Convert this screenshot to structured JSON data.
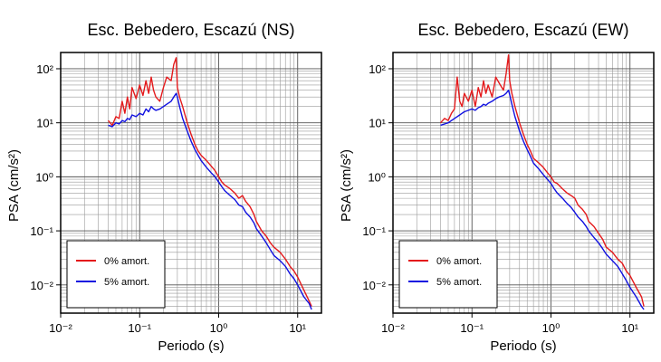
{
  "chart_data": [
    {
      "type": "line",
      "title": "Esc. Bebedero, Escazú (NS)",
      "xlabel": "Periodo (s)",
      "ylabel": "PSA (cm/s²)",
      "xscale": "log",
      "yscale": "log",
      "xlim": [
        0.01,
        20
      ],
      "ylim": [
        0.003,
        200
      ],
      "x_ticks": [
        0.01,
        0.1,
        1,
        10
      ],
      "x_tick_labels": [
        "10⁻²",
        "10⁻¹",
        "10⁰",
        "10¹"
      ],
      "y_ticks": [
        0.01,
        0.1,
        1,
        10,
        100
      ],
      "y_tick_labels": [
        "10⁻²",
        "10⁻¹",
        "10⁰",
        "10¹",
        "10²"
      ],
      "grid": true,
      "legend_position": "bottom-left",
      "series": [
        {
          "name": "0% amort.",
          "color": "#e41a1c",
          "x": [
            0.04,
            0.045,
            0.05,
            0.055,
            0.06,
            0.065,
            0.07,
            0.075,
            0.08,
            0.09,
            0.1,
            0.11,
            0.12,
            0.13,
            0.14,
            0.15,
            0.16,
            0.18,
            0.2,
            0.22,
            0.25,
            0.27,
            0.29,
            0.3,
            0.32,
            0.35,
            0.4,
            0.45,
            0.5,
            0.55,
            0.6,
            0.7,
            0.8,
            0.9,
            1.0,
            1.1,
            1.2,
            1.4,
            1.6,
            1.8,
            2.0,
            2.2,
            2.5,
            2.8,
            3.0,
            3.5,
            4.0,
            4.5,
            5.0,
            6.0,
            7.0,
            8.0,
            9.0,
            10.0,
            12.0,
            14.0,
            15.0
          ],
          "y": [
            11,
            9,
            13,
            12,
            25,
            15,
            30,
            18,
            45,
            28,
            50,
            32,
            60,
            35,
            70,
            40,
            30,
            25,
            45,
            70,
            60,
            120,
            160,
            45,
            30,
            20,
            10,
            6,
            4,
            3,
            2.5,
            2,
            1.6,
            1.3,
            1.0,
            0.8,
            0.7,
            0.6,
            0.5,
            0.4,
            0.45,
            0.35,
            0.28,
            0.2,
            0.15,
            0.1,
            0.08,
            0.06,
            0.05,
            0.04,
            0.03,
            0.022,
            0.018,
            0.014,
            0.008,
            0.005,
            0.004
          ]
        },
        {
          "name": "5% amort.",
          "color": "#1010e0",
          "x": [
            0.04,
            0.045,
            0.05,
            0.055,
            0.06,
            0.065,
            0.07,
            0.075,
            0.08,
            0.09,
            0.1,
            0.11,
            0.12,
            0.13,
            0.14,
            0.15,
            0.16,
            0.18,
            0.2,
            0.22,
            0.25,
            0.27,
            0.29,
            0.3,
            0.32,
            0.35,
            0.4,
            0.45,
            0.5,
            0.55,
            0.6,
            0.7,
            0.8,
            0.9,
            1.0,
            1.1,
            1.2,
            1.4,
            1.6,
            1.8,
            2.0,
            2.2,
            2.5,
            2.8,
            3.0,
            3.5,
            4.0,
            4.5,
            5.0,
            6.0,
            7.0,
            8.0,
            9.0,
            10.0,
            12.0,
            14.0,
            15.0
          ],
          "y": [
            9,
            8.5,
            10,
            9.5,
            11,
            10.5,
            12,
            11.5,
            14,
            13,
            15,
            14,
            18,
            16,
            20,
            18,
            17,
            18,
            20,
            22,
            25,
            30,
            35,
            30,
            20,
            12,
            7,
            4.5,
            3.2,
            2.5,
            2,
            1.5,
            1.2,
            1.0,
            0.8,
            0.65,
            0.55,
            0.45,
            0.38,
            0.3,
            0.28,
            0.22,
            0.18,
            0.14,
            0.11,
            0.08,
            0.06,
            0.045,
            0.035,
            0.028,
            0.022,
            0.016,
            0.013,
            0.01,
            0.006,
            0.0045,
            0.0035
          ]
        }
      ]
    },
    {
      "type": "line",
      "title": "Esc. Bebedero, Escazú (EW)",
      "xlabel": "Periodo (s)",
      "ylabel": "PSA (cm/s²)",
      "xscale": "log",
      "yscale": "log",
      "xlim": [
        0.01,
        20
      ],
      "ylim": [
        0.003,
        200
      ],
      "x_ticks": [
        0.01,
        0.1,
        1,
        10
      ],
      "x_tick_labels": [
        "10⁻²",
        "10⁻¹",
        "10⁰",
        "10¹"
      ],
      "y_ticks": [
        0.01,
        0.1,
        1,
        10,
        100
      ],
      "y_tick_labels": [
        "10⁻²",
        "10⁻¹",
        "10⁰",
        "10¹",
        "10²"
      ],
      "grid": true,
      "legend_position": "bottom-left",
      "series": [
        {
          "name": "0% amort.",
          "color": "#e41a1c",
          "x": [
            0.04,
            0.045,
            0.05,
            0.055,
            0.06,
            0.065,
            0.07,
            0.075,
            0.08,
            0.09,
            0.1,
            0.11,
            0.12,
            0.13,
            0.14,
            0.15,
            0.16,
            0.18,
            0.2,
            0.22,
            0.25,
            0.27,
            0.29,
            0.3,
            0.32,
            0.35,
            0.4,
            0.45,
            0.5,
            0.55,
            0.6,
            0.7,
            0.8,
            0.9,
            1.0,
            1.1,
            1.2,
            1.4,
            1.6,
            1.8,
            2.0,
            2.2,
            2.5,
            2.8,
            3.0,
            3.5,
            4.0,
            4.5,
            5.0,
            6.0,
            7.0,
            8.0,
            9.0,
            10.0,
            12.0,
            14.0,
            15.0
          ],
          "y": [
            10,
            12,
            11,
            15,
            18,
            70,
            25,
            20,
            35,
            25,
            40,
            20,
            45,
            30,
            60,
            35,
            50,
            30,
            70,
            55,
            40,
            80,
            180,
            60,
            35,
            20,
            10,
            6,
            4,
            3,
            2.2,
            1.8,
            1.5,
            1.2,
            1.0,
            0.8,
            0.75,
            0.6,
            0.5,
            0.45,
            0.4,
            0.3,
            0.25,
            0.2,
            0.15,
            0.12,
            0.09,
            0.07,
            0.05,
            0.04,
            0.03,
            0.025,
            0.018,
            0.015,
            0.009,
            0.006,
            0.004
          ]
        },
        {
          "name": "5% amort.",
          "color": "#1010e0",
          "x": [
            0.04,
            0.045,
            0.05,
            0.055,
            0.06,
            0.065,
            0.07,
            0.075,
            0.08,
            0.09,
            0.1,
            0.11,
            0.12,
            0.13,
            0.14,
            0.15,
            0.16,
            0.18,
            0.2,
            0.22,
            0.25,
            0.27,
            0.29,
            0.3,
            0.32,
            0.35,
            0.4,
            0.45,
            0.5,
            0.55,
            0.6,
            0.7,
            0.8,
            0.9,
            1.0,
            1.1,
            1.2,
            1.4,
            1.6,
            1.8,
            2.0,
            2.2,
            2.5,
            2.8,
            3.0,
            3.5,
            4.0,
            4.5,
            5.0,
            6.0,
            7.0,
            8.0,
            9.0,
            10.0,
            12.0,
            14.0,
            15.0
          ],
          "y": [
            9,
            9.5,
            10,
            11,
            12,
            13,
            14,
            15,
            16,
            17,
            18,
            17,
            19,
            20,
            22,
            21,
            23,
            25,
            28,
            30,
            32,
            35,
            40,
            33,
            22,
            13,
            7,
            4.5,
            3.2,
            2.4,
            1.8,
            1.4,
            1.1,
            0.9,
            0.75,
            0.6,
            0.5,
            0.4,
            0.32,
            0.27,
            0.22,
            0.18,
            0.15,
            0.12,
            0.1,
            0.075,
            0.06,
            0.047,
            0.037,
            0.028,
            0.022,
            0.016,
            0.012,
            0.009,
            0.006,
            0.004,
            0.0035
          ]
        }
      ]
    }
  ]
}
